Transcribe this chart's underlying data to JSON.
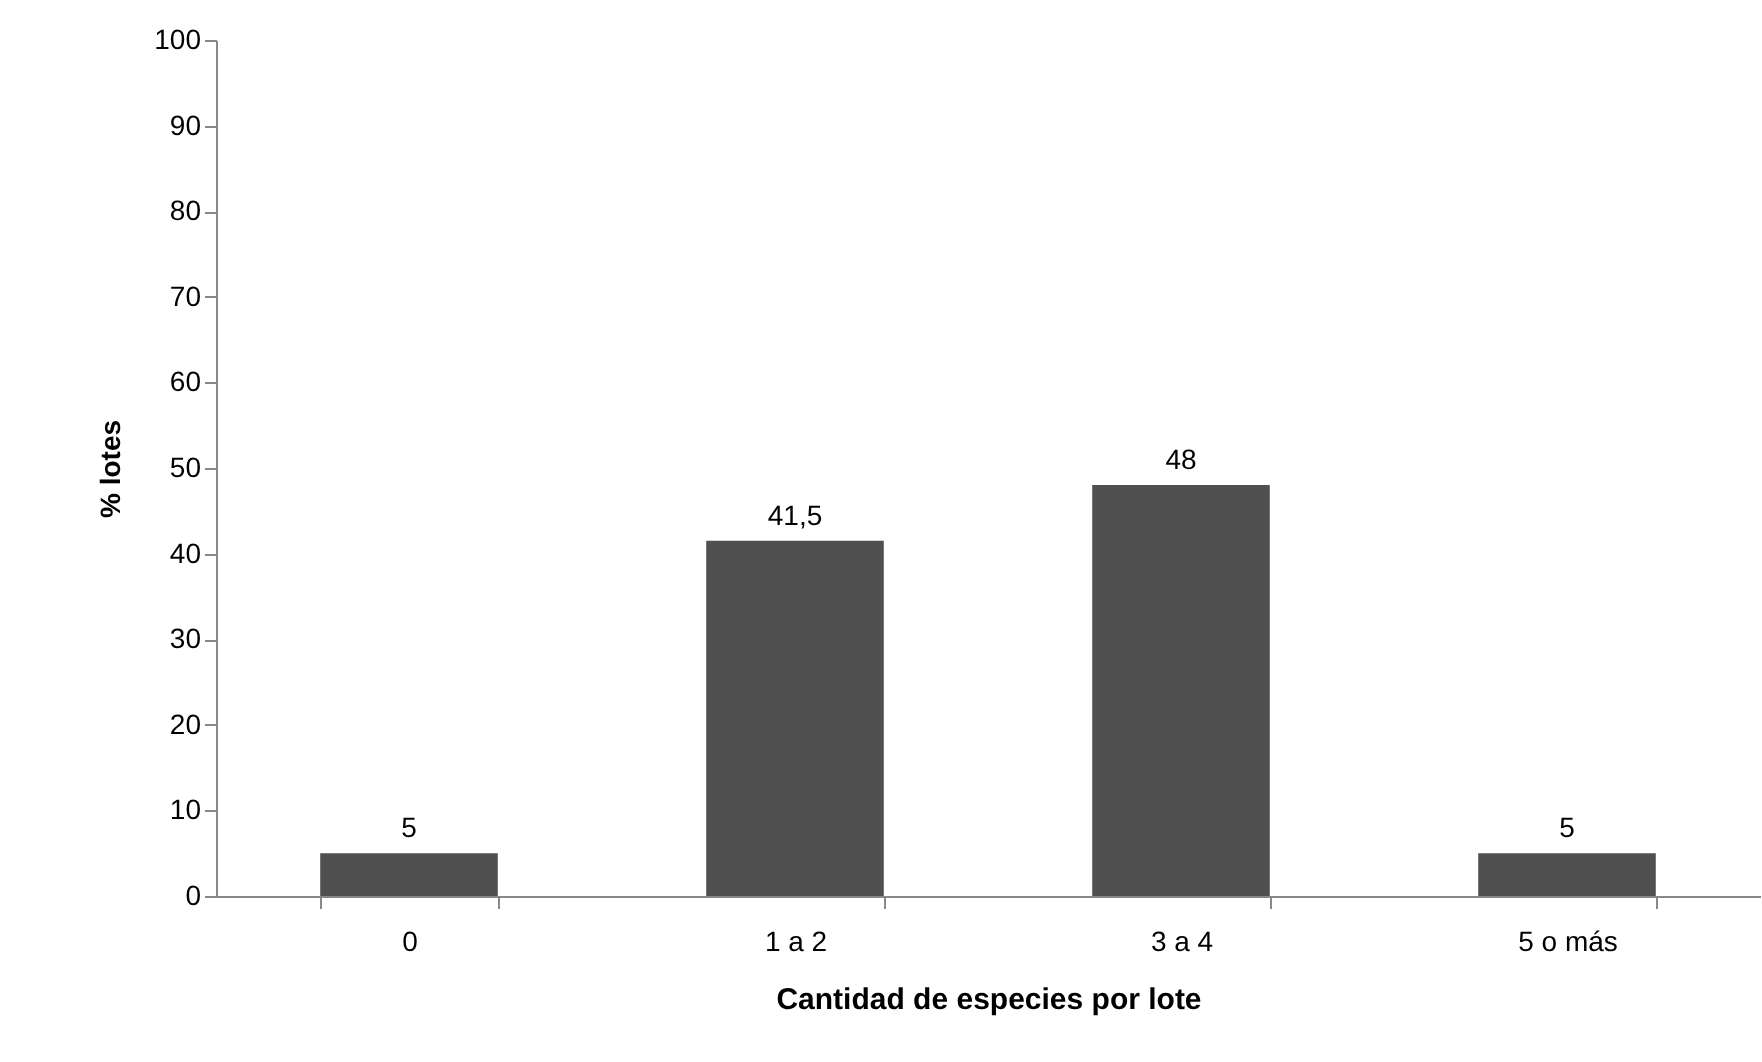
{
  "chart_data": {
    "type": "bar",
    "xlabel": "Cantidad de especies por lote",
    "ylabel": "% lotes",
    "categories": [
      "0",
      "1 a 2",
      "3 a 4",
      "5 o más"
    ],
    "values": [
      5,
      41.5,
      48,
      5
    ],
    "value_labels": [
      "5",
      "41,5",
      "48",
      "5"
    ],
    "color": "#505050",
    "ylim": [
      0,
      100
    ],
    "yticks": [
      0,
      10,
      20,
      30,
      40,
      50,
      60,
      70,
      80,
      90,
      100
    ],
    "grid": false
  }
}
